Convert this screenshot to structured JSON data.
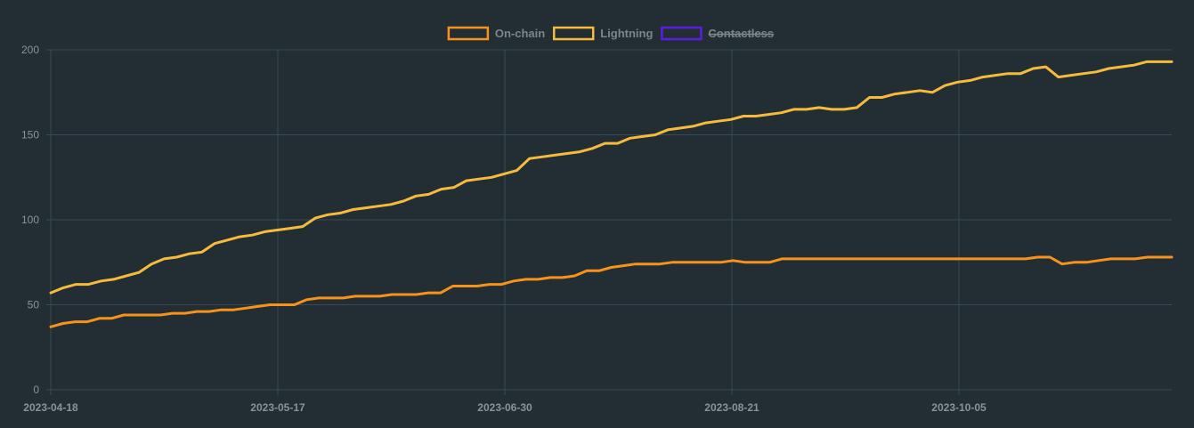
{
  "chart_data": {
    "type": "line",
    "title": "",
    "xlabel": "",
    "ylabel": "",
    "ylim": [
      0,
      200
    ],
    "y_ticks": [
      "0",
      "50",
      "100",
      "150",
      "200"
    ],
    "x_ticks": [
      "2023-04-18",
      "2023-05-17",
      "2023-06-30",
      "2023-08-21",
      "2023-10-05"
    ],
    "grid": true,
    "legend_position": "top-center",
    "colors": {
      "background": "#222e33",
      "grid": "#3b4a50",
      "tick_text": "#8a9397",
      "legend_text": "#7c8588"
    },
    "series": [
      {
        "name": "On-chain",
        "color": "#f7931a",
        "hidden": false,
        "values": [
          37,
          39,
          40,
          40,
          42,
          42,
          44,
          44,
          44,
          44,
          45,
          45,
          46,
          46,
          47,
          47,
          48,
          49,
          50,
          50,
          50,
          53,
          54,
          54,
          54,
          55,
          55,
          55,
          56,
          56,
          56,
          57,
          57,
          61,
          61,
          61,
          62,
          62,
          64,
          65,
          65,
          66,
          66,
          67,
          70,
          70,
          72,
          73,
          74,
          74,
          74,
          75,
          75,
          75,
          75,
          75,
          76,
          75,
          75,
          75,
          77,
          77,
          77,
          77,
          77,
          77,
          77,
          77,
          77,
          77,
          77,
          77,
          77,
          77,
          77,
          77,
          77,
          77,
          77,
          77,
          77,
          78,
          78,
          74,
          75,
          75,
          76,
          77,
          77,
          77,
          78,
          78,
          78
        ]
      },
      {
        "name": "Lightning",
        "color": "#f6bb3c",
        "hidden": false,
        "values": [
          57,
          60,
          62,
          62,
          64,
          65,
          67,
          69,
          74,
          77,
          78,
          80,
          81,
          86,
          88,
          90,
          91,
          93,
          94,
          95,
          96,
          101,
          103,
          104,
          106,
          107,
          108,
          109,
          111,
          114,
          115,
          118,
          119,
          123,
          124,
          125,
          127,
          129,
          136,
          137,
          138,
          139,
          140,
          142,
          145,
          145,
          148,
          149,
          150,
          153,
          154,
          155,
          157,
          158,
          159,
          161,
          161,
          162,
          163,
          165,
          165,
          166,
          165,
          165,
          166,
          172,
          172,
          174,
          175,
          176,
          175,
          179,
          181,
          182,
          184,
          185,
          186,
          186,
          189,
          190,
          184,
          185,
          186,
          187,
          189,
          190,
          191,
          193,
          193,
          193
        ]
      },
      {
        "name": "Contactless",
        "color": "#5b1de6",
        "hidden": true,
        "values": []
      }
    ]
  }
}
